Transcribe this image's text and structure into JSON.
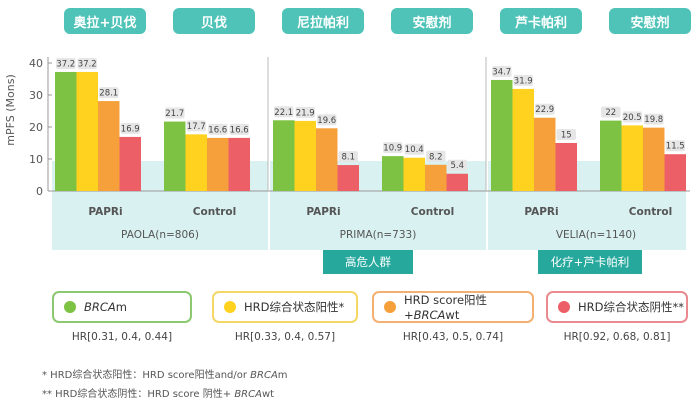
{
  "chart_data": {
    "type": "bar",
    "ylabel": "mPFS (Mons)",
    "yticks": [
      0,
      10,
      20,
      30,
      40
    ],
    "drug_headers": [
      "奥拉+贝伐",
      "贝伐",
      "尼拉帕利",
      "安慰剂",
      "芦卡帕利",
      "安慰剂"
    ],
    "groups": [
      {
        "label": "PAPRi",
        "trial": "PAOLA(n=806)",
        "values": [
          37.2,
          37.2,
          28.1,
          16.9
        ]
      },
      {
        "label": "Control",
        "trial": "PAOLA(n=806)",
        "values": [
          21.7,
          17.7,
          16.6,
          16.6
        ]
      },
      {
        "label": "PAPRi",
        "trial": "PRIMA(n=733)",
        "values": [
          22.1,
          21.9,
          19.6,
          8.1
        ]
      },
      {
        "label": "Control",
        "trial": "PRIMA(n=733)",
        "values": [
          10.9,
          10.4,
          8.2,
          5.4
        ]
      },
      {
        "label": "PAPRi",
        "trial": "VELIA(n=1140)",
        "values": [
          34.7,
          31.9,
          22.9,
          15
        ]
      },
      {
        "label": "Control",
        "trial": "VELIA(n=1140)",
        "values": [
          22,
          20.5,
          19.8,
          11.5
        ]
      }
    ],
    "trials": [
      "PAOLA(n=806)",
      "PRIMA(n=733)",
      "VELIA(n=1140)"
    ],
    "ribbons": [
      "高危人群",
      "化疗+芦卡帕利"
    ],
    "series": [
      {
        "name_prefix": "",
        "name_em": "BRCA",
        "name_suffix": "m",
        "color": "#7dc242",
        "border": "#8cc872",
        "hr": "HR[0.31, 0.4, 0.44]"
      },
      {
        "name_prefix": "HRD综合状态阳性*",
        "name_em": "",
        "name_suffix": "",
        "color": "#ffd21f",
        "border": "#f5d766",
        "hr": "HR[0.33, 0.4, 0.57]"
      },
      {
        "name_prefix": "HRD score阳性+",
        "name_em": "BRCA",
        "name_suffix": "wt",
        "color": "#f6a03c",
        "border": "#f3b070",
        "hr": "HR[0.43, 0.5, 0.74]"
      },
      {
        "name_prefix": "HRD综合状态阴性**",
        "name_em": "",
        "name_suffix": "",
        "color": "#ec5f67",
        "border": "#e88a90",
        "hr": "HR[0.92, 0.68, 0.81]"
      }
    ],
    "footnotes": [
      {
        "text": "*  HRD综合状态阳性：HRD score阳性and/or ",
        "em": "BRCA",
        "tail": "m"
      },
      {
        "text": "** HRD综合状态阴性：HRD score 阴性+ ",
        "em": "BRCA",
        "tail": "wt"
      }
    ]
  }
}
